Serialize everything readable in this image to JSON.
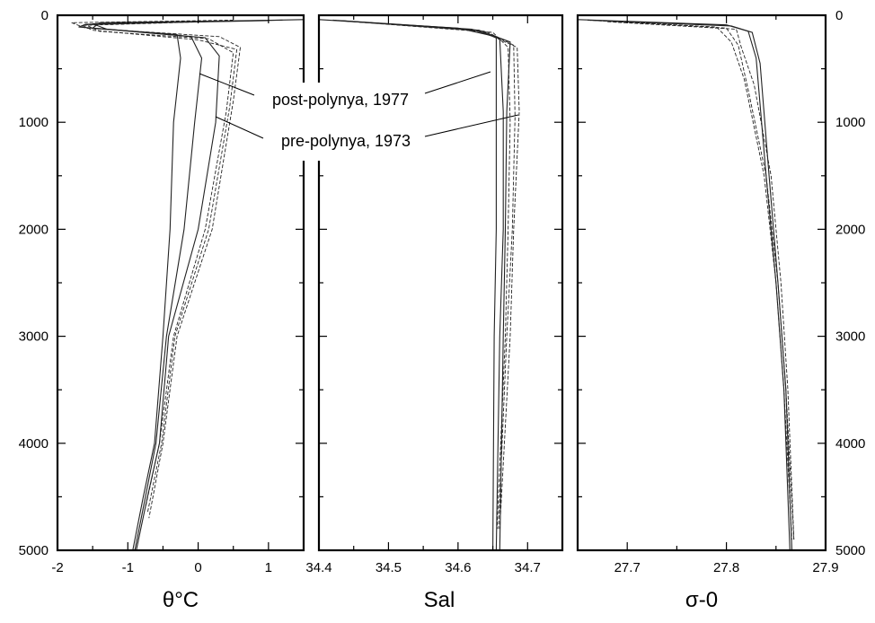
{
  "chart_data": [
    {
      "type": "line",
      "xlabel": "θ°C",
      "ylabel": "",
      "xlim": [
        -2,
        1.5
      ],
      "ylim": [
        5000,
        0
      ],
      "xticks": [
        "-2",
        "-1",
        "0",
        "1"
      ],
      "yticks": [
        "0",
        "1000",
        "2000",
        "3000",
        "4000",
        "5000"
      ],
      "annotations": [
        {
          "text": "post-polynya, 1977"
        },
        {
          "text": "pre-polynya, 1973"
        }
      ],
      "series": [
        {
          "style": "solid",
          "x": [
            1.5,
            0.0,
            -1.6,
            -1.7,
            -0.3,
            -0.25,
            -0.35,
            -0.4,
            -0.5,
            -0.62,
            -0.78,
            -0.93
          ],
          "y": [
            40,
            60,
            85,
            110,
            180,
            400,
            1000,
            2000,
            3000,
            4000,
            4500,
            5000
          ]
        },
        {
          "style": "solid",
          "x": [
            1.2,
            -1.4,
            -1.5,
            -0.1,
            0.05,
            -0.05,
            -0.2,
            -0.45,
            -0.6,
            -0.75,
            -0.9
          ],
          "y": [
            45,
            70,
            120,
            200,
            400,
            1000,
            2000,
            3000,
            4000,
            4500,
            5000
          ]
        },
        {
          "style": "solid",
          "x": [
            1.0,
            -1.5,
            -1.3,
            0.1,
            0.3,
            0.25,
            0.0,
            -0.42,
            -0.55,
            -0.72,
            -0.88
          ],
          "y": [
            50,
            80,
            130,
            210,
            380,
            1000,
            2000,
            3000,
            4000,
            4500,
            5000
          ]
        },
        {
          "style": "dashed",
          "x": [
            0.5,
            -1.8,
            -1.6,
            0.3,
            0.6,
            0.5,
            0.2,
            -0.3,
            -0.5,
            -0.7
          ],
          "y": [
            45,
            70,
            120,
            200,
            300,
            800,
            2000,
            3000,
            4000,
            4700
          ]
        },
        {
          "style": "dashed",
          "x": [
            0.2,
            -1.6,
            -1.4,
            0.15,
            0.5,
            0.4,
            0.1,
            -0.35,
            -0.55,
            -0.75
          ],
          "y": [
            55,
            90,
            150,
            220,
            350,
            900,
            2000,
            3000,
            4000,
            4600
          ]
        },
        {
          "style": "dashed",
          "x": [
            0.1,
            -1.65,
            -1.5,
            0.0,
            0.55,
            0.45,
            0.15,
            -0.33,
            -0.52,
            -0.72
          ],
          "y": [
            60,
            95,
            140,
            230,
            320,
            850,
            2000,
            3000,
            4000,
            4650
          ]
        }
      ]
    },
    {
      "type": "line",
      "xlabel": "Sal",
      "xlim": [
        34.4,
        34.75
      ],
      "ylim": [
        5000,
        0
      ],
      "xticks": [
        "34.4",
        "34.5",
        "34.6",
        "34.7"
      ],
      "series": [
        {
          "style": "solid",
          "x": [
            34.4,
            34.6,
            34.655,
            34.655,
            34.655,
            34.652,
            34.65
          ],
          "y": [
            40,
            120,
            200,
            800,
            2000,
            3000,
            5000
          ]
        },
        {
          "style": "solid",
          "x": [
            34.42,
            34.62,
            34.66,
            34.665,
            34.665,
            34.66,
            34.655
          ],
          "y": [
            45,
            130,
            220,
            900,
            2000,
            3000,
            5000
          ]
        },
        {
          "style": "solid",
          "x": [
            34.43,
            34.63,
            34.675,
            34.67,
            34.668,
            34.665,
            34.66
          ],
          "y": [
            50,
            140,
            250,
            900,
            2000,
            3000,
            5000
          ]
        },
        {
          "style": "dashed",
          "x": [
            34.42,
            34.63,
            34.685,
            34.688,
            34.68,
            34.675,
            34.66
          ],
          "y": [
            45,
            140,
            300,
            900,
            2000,
            3000,
            4800
          ]
        },
        {
          "style": "dashed",
          "x": [
            34.44,
            34.64,
            34.68,
            34.682,
            34.678,
            34.67,
            34.658
          ],
          "y": [
            55,
            150,
            280,
            950,
            2000,
            3000,
            4800
          ]
        },
        {
          "style": "dashed",
          "x": [
            34.45,
            34.65,
            34.672,
            34.675,
            34.672,
            34.668,
            34.656
          ],
          "y": [
            60,
            160,
            300,
            1000,
            2000,
            3000,
            4800
          ]
        }
      ]
    },
    {
      "type": "line",
      "xlabel": "σ-0",
      "xlim": [
        27.65,
        27.9
      ],
      "ylim": [
        5000,
        0
      ],
      "xticks": [
        "27.7",
        "27.8",
        "27.9"
      ],
      "series": [
        {
          "style": "solid",
          "x": [
            27.65,
            27.8,
            27.822,
            27.83,
            27.84,
            27.85,
            27.858,
            27.864
          ],
          "y": [
            40,
            90,
            150,
            400,
            1500,
            2500,
            3500,
            5000
          ]
        },
        {
          "style": "solid",
          "x": [
            27.66,
            27.805,
            27.826,
            27.834,
            27.843,
            27.852,
            27.86,
            27.866
          ],
          "y": [
            45,
            100,
            160,
            450,
            1500,
            2500,
            3500,
            5000
          ]
        },
        {
          "style": "dashed",
          "x": [
            27.66,
            27.79,
            27.805,
            27.818,
            27.838,
            27.85,
            27.858,
            27.866
          ],
          "y": [
            45,
            110,
            250,
            600,
            1500,
            2500,
            3500,
            4900
          ]
        },
        {
          "style": "dashed",
          "x": [
            27.67,
            27.8,
            27.812,
            27.822,
            27.84,
            27.852,
            27.86,
            27.868
          ],
          "y": [
            50,
            120,
            280,
            700,
            1500,
            2500,
            3500,
            4900
          ]
        },
        {
          "style": "dashed",
          "x": [
            27.68,
            27.81,
            27.815,
            27.828,
            27.845,
            27.855,
            27.862,
            27.868
          ],
          "y": [
            60,
            130,
            300,
            650,
            1500,
            2500,
            3500,
            4900
          ]
        }
      ]
    }
  ]
}
